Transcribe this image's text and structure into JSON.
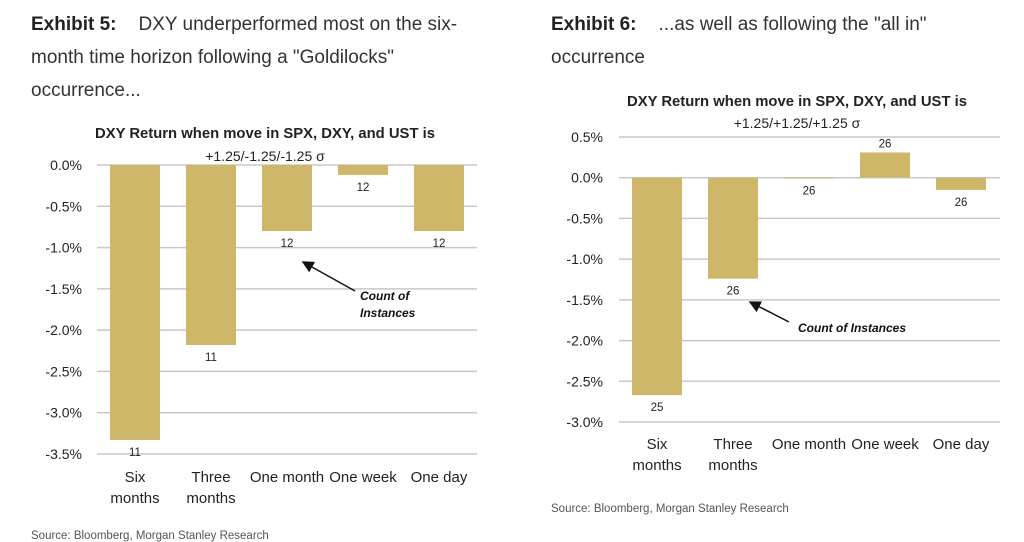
{
  "exhibits": [
    {
      "label": "Exhibit 5:",
      "heading": "DXY underperformed most on the six-month time horizon following a \"Goldilocks\" occurrence...",
      "source": "Source: Bloomberg, Morgan Stanley Research"
    },
    {
      "label": "Exhibit 6:",
      "heading": "...as well as following the \"all in\" occurrence",
      "source": "Source: Bloomberg, Morgan Stanley Research"
    }
  ],
  "colors": {
    "bar": "#CFB76A",
    "grid": "#C8C8C8",
    "text": "#222222"
  },
  "chart_data": [
    {
      "type": "bar",
      "title": "DXY Return when move in SPX, DXY, and UST is",
      "subtitle": "+1.25/-1.25/-1.25 σ",
      "categories": [
        [
          "Six",
          "months"
        ],
        [
          "Three",
          "months"
        ],
        [
          "One month"
        ],
        [
          "One week"
        ],
        [
          "One day"
        ]
      ],
      "values": [
        -3.33,
        -2.18,
        -0.8,
        -0.12,
        -0.8
      ],
      "counts": [
        "11",
        "11",
        "12",
        "12",
        "12"
      ],
      "yticks": [
        "0.0%",
        "-0.5%",
        "-1.0%",
        "-1.5%",
        "-2.0%",
        "-2.5%",
        "-3.0%",
        "-3.5%"
      ],
      "ylim": [
        -3.5,
        0.0
      ],
      "grid": true,
      "annotation": [
        "Count of",
        "Instances"
      ],
      "ylabel": "",
      "xlabel": ""
    },
    {
      "type": "bar",
      "title": "DXY Return when move in SPX, DXY, and UST is",
      "subtitle": "+1.25/+1.25/+1.25 σ",
      "categories": [
        [
          "Six",
          "months"
        ],
        [
          "Three",
          "months"
        ],
        [
          "One month"
        ],
        [
          "One week"
        ],
        [
          "One day"
        ]
      ],
      "values": [
        -2.67,
        -1.24,
        -0.01,
        0.31,
        -0.15
      ],
      "counts": [
        "25",
        "26",
        "26",
        "26",
        "26"
      ],
      "yticks": [
        "0.5%",
        "0.0%",
        "-0.5%",
        "-1.0%",
        "-1.5%",
        "-2.0%",
        "-2.5%",
        "-3.0%"
      ],
      "ylim": [
        -3.0,
        0.5
      ],
      "grid": true,
      "annotation": [
        "Count of Instances"
      ],
      "ylabel": "",
      "xlabel": ""
    }
  ]
}
